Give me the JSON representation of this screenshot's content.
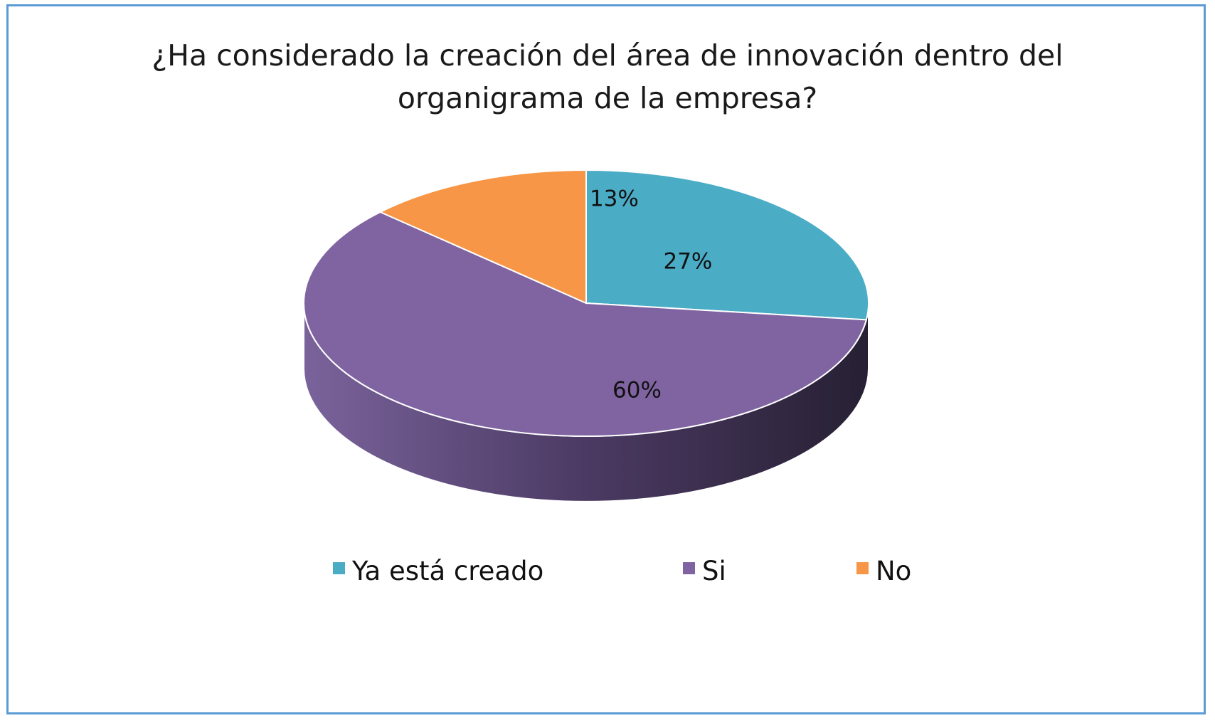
{
  "chart_data": {
    "type": "pie",
    "style": "3d",
    "title_lines": [
      "¿Ha considerado la creación del área de innovación dentro del",
      "organigrama de la empresa?"
    ],
    "categories": [
      "Ya está creado",
      "Si",
      "No"
    ],
    "values": [
      27,
      60,
      13
    ],
    "labels": [
      "27%",
      "60%",
      "13%"
    ],
    "colors": [
      "#4bacc6",
      "#8064a2",
      "#f79646"
    ],
    "legend_position": "bottom"
  }
}
